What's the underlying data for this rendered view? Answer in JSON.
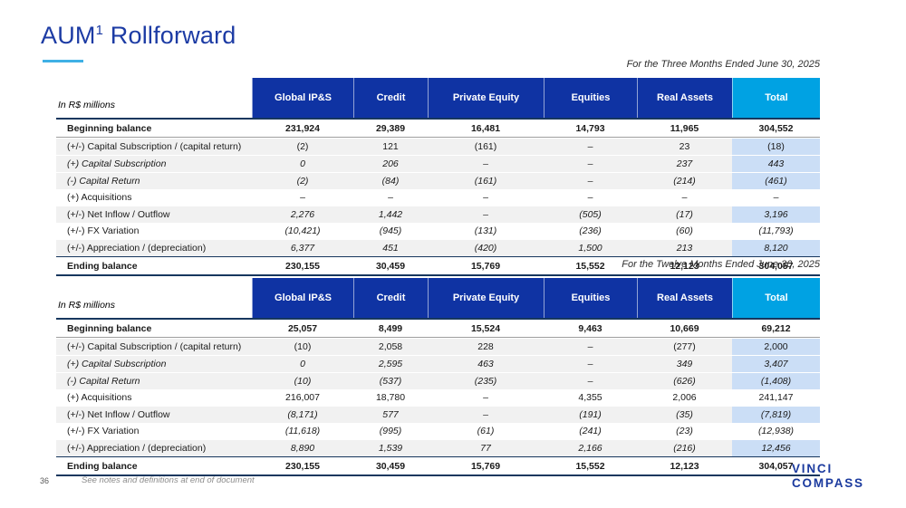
{
  "title": {
    "prefix": "AUM",
    "superscript": "1",
    "suffix": " Rollforward"
  },
  "colors": {
    "header-blue": "#0F33A3",
    "total-cyan": "#00A2E3",
    "highlight-blue": "#CBDEF6",
    "row-gray": "#F1F1F1",
    "title-navy": "#1C3BA4",
    "underline-cyan": "#3FB0E5",
    "border-navy": "#17375E"
  },
  "tables": [
    {
      "caption": "For the Three Months Ended June 30, 2025",
      "unit_label": "In R$ millions",
      "columns": [
        "Global IP&S",
        "Credit",
        "Private Equity",
        "Equities",
        "Real Assets",
        "Total"
      ],
      "rows": [
        {
          "label": "Beginning balance",
          "values": [
            "231,924",
            "29,389",
            "16,481",
            "14,793",
            "11,965",
            "304,552"
          ],
          "bold": true,
          "shaded": false,
          "italic_label": false,
          "italic_values": false
        },
        {
          "label": "(+/-) Capital Subscription / (capital return)",
          "values": [
            "(2)",
            "121",
            "(161)",
            "–",
            "23",
            "(18)"
          ],
          "bold": false,
          "shaded": true,
          "italic_label": false,
          "italic_values": false
        },
        {
          "label": "(+) Capital Subscription",
          "values": [
            "0",
            "206",
            "–",
            "–",
            "237",
            "443"
          ],
          "bold": false,
          "shaded": true,
          "italic_label": true,
          "italic_values": true
        },
        {
          "label": "(-) Capital Return",
          "values": [
            "(2)",
            "(84)",
            "(161)",
            "–",
            "(214)",
            "(461)"
          ],
          "bold": false,
          "shaded": true,
          "italic_label": true,
          "italic_values": true
        },
        {
          "label": "(+) Acquisitions",
          "values": [
            "–",
            "–",
            "–",
            "–",
            "–",
            "–"
          ],
          "bold": false,
          "shaded": false,
          "italic_label": false,
          "italic_values": false
        },
        {
          "label": "(+/-) Net Inflow / Outflow",
          "values": [
            "2,276",
            "1,442",
            "–",
            "(505)",
            "(17)",
            "3,196"
          ],
          "bold": false,
          "shaded": true,
          "italic_label": false,
          "italic_values": true
        },
        {
          "label": "(+/-) FX Variation",
          "values": [
            "(10,421)",
            "(945)",
            "(131)",
            "(236)",
            "(60)",
            "(11,793)"
          ],
          "bold": false,
          "shaded": false,
          "italic_label": false,
          "italic_values": true
        },
        {
          "label": "(+/-) Appreciation / (depreciation)",
          "values": [
            "6,377",
            "451",
            "(420)",
            "1,500",
            "213",
            "8,120"
          ],
          "bold": false,
          "shaded": true,
          "italic_label": false,
          "italic_values": true
        },
        {
          "label": "Ending balance",
          "values": [
            "230,155",
            "30,459",
            "15,769",
            "15,552",
            "12,123",
            "304,057"
          ],
          "bold": true,
          "shaded": false,
          "italic_label": false,
          "italic_values": false
        }
      ]
    },
    {
      "caption": "For the Twelve Months Ended June 30, 2025",
      "unit_label": "In R$ millions",
      "columns": [
        "Global IP&S",
        "Credit",
        "Private Equity",
        "Equities",
        "Real Assets",
        "Total"
      ],
      "rows": [
        {
          "label": "Beginning balance",
          "values": [
            "25,057",
            "8,499",
            "15,524",
            "9,463",
            "10,669",
            "69,212"
          ],
          "bold": true,
          "shaded": false,
          "italic_label": false,
          "italic_values": false
        },
        {
          "label": "(+/-) Capital Subscription / (capital return)",
          "values": [
            "(10)",
            "2,058",
            "228",
            "–",
            "(277)",
            "2,000"
          ],
          "bold": false,
          "shaded": true,
          "italic_label": false,
          "italic_values": false
        },
        {
          "label": "(+) Capital Subscription",
          "values": [
            "0",
            "2,595",
            "463",
            "–",
            "349",
            "3,407"
          ],
          "bold": false,
          "shaded": true,
          "italic_label": true,
          "italic_values": true
        },
        {
          "label": "(-) Capital Return",
          "values": [
            "(10)",
            "(537)",
            "(235)",
            "–",
            "(626)",
            "(1,408)"
          ],
          "bold": false,
          "shaded": true,
          "italic_label": true,
          "italic_values": true
        },
        {
          "label": "(+) Acquisitions",
          "values": [
            "216,007",
            "18,780",
            "–",
            "4,355",
            "2,006",
            "241,147"
          ],
          "bold": false,
          "shaded": false,
          "italic_label": false,
          "italic_values": false
        },
        {
          "label": "(+/-) Net Inflow / Outflow",
          "values": [
            "(8,171)",
            "577",
            "–",
            "(191)",
            "(35)",
            "(7,819)"
          ],
          "bold": false,
          "shaded": true,
          "italic_label": false,
          "italic_values": true
        },
        {
          "label": "(+/-) FX Variation",
          "values": [
            "(11,618)",
            "(995)",
            "(61)",
            "(241)",
            "(23)",
            "(12,938)"
          ],
          "bold": false,
          "shaded": false,
          "italic_label": false,
          "italic_values": true
        },
        {
          "label": "(+/-) Appreciation / (depreciation)",
          "values": [
            "8,890",
            "1,539",
            "77",
            "2,166",
            "(216)",
            "12,456"
          ],
          "bold": false,
          "shaded": true,
          "italic_label": false,
          "italic_values": true
        },
        {
          "label": "Ending balance",
          "values": [
            "230,155",
            "30,459",
            "15,769",
            "15,552",
            "12,123",
            "304,057"
          ],
          "bold": true,
          "shaded": false,
          "italic_label": false,
          "italic_values": false
        }
      ]
    }
  ],
  "footer": {
    "page_number": "36",
    "note": "See notes and definitions at end of document",
    "logo": {
      "line1": "VINCI",
      "line2": "COMPASS"
    }
  }
}
